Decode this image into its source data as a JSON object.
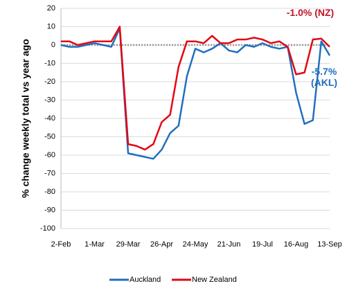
{
  "chart_data": {
    "type": "line",
    "y_label": "% change weekly total  vs year ago",
    "categories": [
      "2-Feb",
      null,
      null,
      null,
      "1-Mar",
      null,
      null,
      null,
      "29-Mar",
      null,
      null,
      null,
      "26-Apr",
      null,
      null,
      null,
      "24-May",
      null,
      null,
      null,
      "21-Jun",
      null,
      null,
      null,
      "19-Jul",
      null,
      null,
      null,
      "16-Aug",
      null,
      null,
      null,
      "13-Sep"
    ],
    "series": [
      {
        "name": "Auckland",
        "color": "#1f6fbf",
        "values": [
          0,
          -1,
          -1,
          0,
          1,
          0,
          -1,
          9,
          -59,
          -60,
          -61,
          -62,
          -57,
          -48,
          -44,
          -17,
          -2,
          -4,
          -2,
          1,
          -3,
          -4,
          0,
          -1,
          1,
          -1,
          -2,
          -1,
          -26,
          -43,
          -41,
          2,
          -5.7
        ]
      },
      {
        "name": "New Zealand",
        "color": "#e30613",
        "values": [
          2,
          2,
          0,
          1,
          2,
          2,
          2,
          10,
          -54,
          -55,
          -57,
          -54,
          -42,
          -38,
          -12,
          2,
          2,
          1,
          5,
          1,
          1,
          3,
          3,
          4,
          3,
          1,
          2,
          -1,
          -16,
          -15,
          3,
          3.5,
          -1
        ]
      }
    ],
    "annotations": [
      {
        "text": "-1.0% (NZ)",
        "color": "#c0152a"
      },
      {
        "text": "-5.7% (AKL)",
        "color": "#1f6fbf"
      }
    ],
    "ylim": [
      -100,
      20
    ],
    "yticks": [
      -100,
      -90,
      -80,
      -70,
      -60,
      -50,
      -40,
      -30,
      -20,
      -10,
      0,
      10,
      20
    ],
    "grid": true
  }
}
